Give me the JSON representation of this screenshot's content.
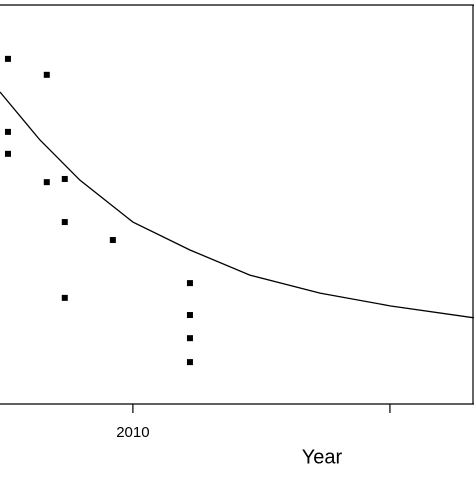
{
  "chart_data": {
    "type": "scatter",
    "x_label": "Year",
    "xlim": [
      2004.83,
      2023.27
    ],
    "ylim": [
      0,
      100
    ],
    "xticks": [
      {
        "value": 2010,
        "label": "2010"
      },
      {
        "value": 2020,
        "label": null
      }
    ],
    "marker_color": "#000000",
    "points": {
      "x": [
        2005.14,
        2006.65,
        2005.14,
        2005.14,
        2006.65,
        2007.35,
        2007.35,
        2009.22,
        2007.35,
        2012.22,
        2012.22,
        2012.22,
        2012.22
      ],
      "y": [
        86.5,
        82.5,
        68.2,
        62.7,
        55.6,
        56.4,
        45.6,
        41.1,
        26.6,
        30.3,
        22.3,
        16.5,
        10.5
      ]
    },
    "fit": {
      "color": "#000000",
      "x": [
        2004.83,
        2006.38,
        2007.94,
        2010,
        2012.22,
        2014.55,
        2017.28,
        2020,
        2023.27
      ],
      "y": [
        78.2,
        66.2,
        56.1,
        45.6,
        38.6,
        32.3,
        27.8,
        24.6,
        21.6
      ]
    }
  }
}
